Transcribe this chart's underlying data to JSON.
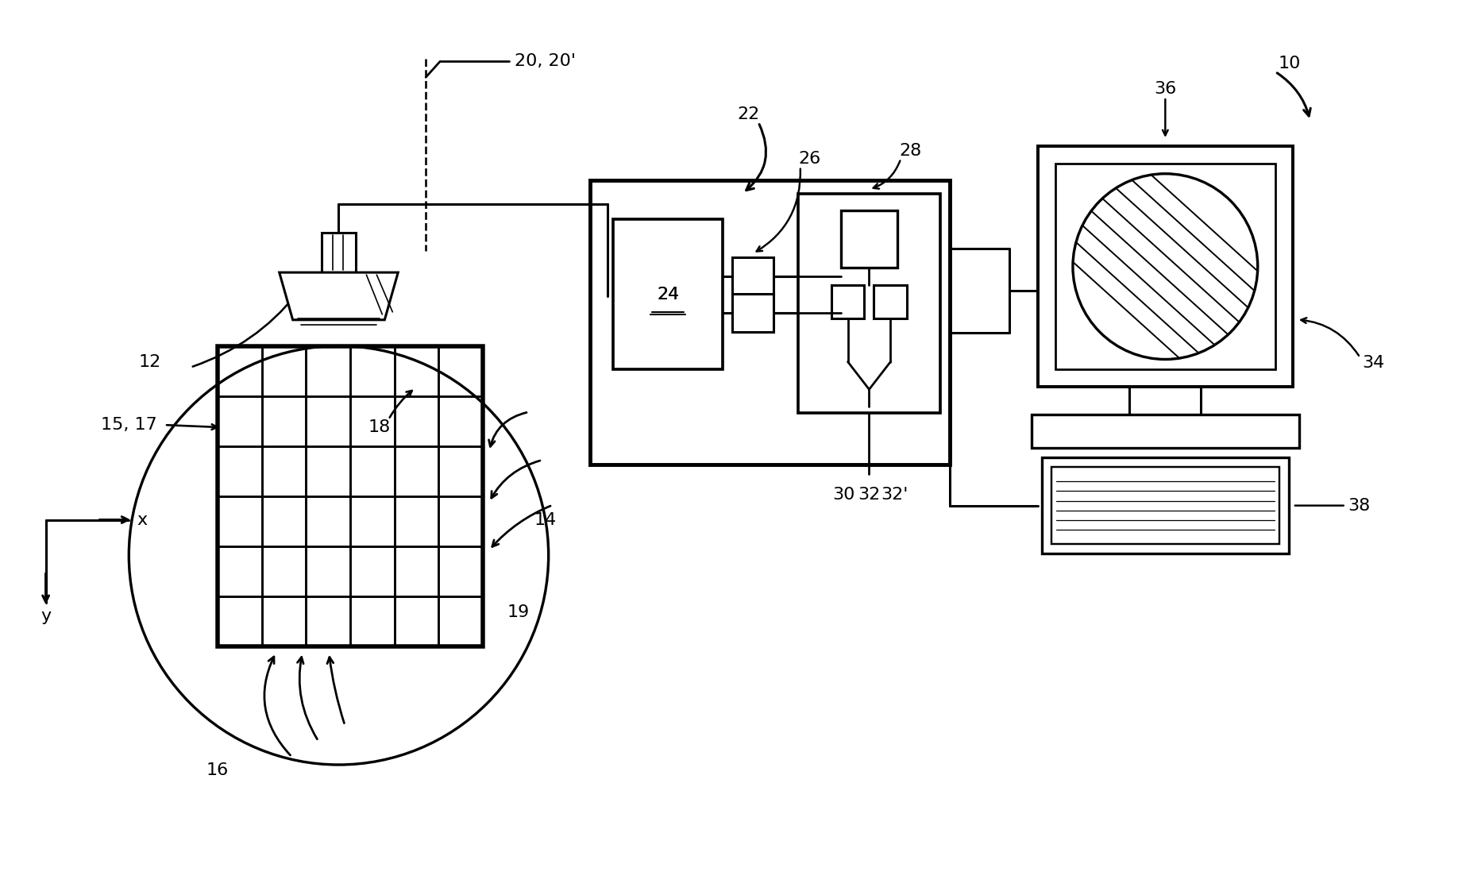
{
  "bg": "#ffffff",
  "lc": "#000000",
  "lw": 2.2,
  "fw": 18.41,
  "fh": 11.22,
  "dpi": 100
}
